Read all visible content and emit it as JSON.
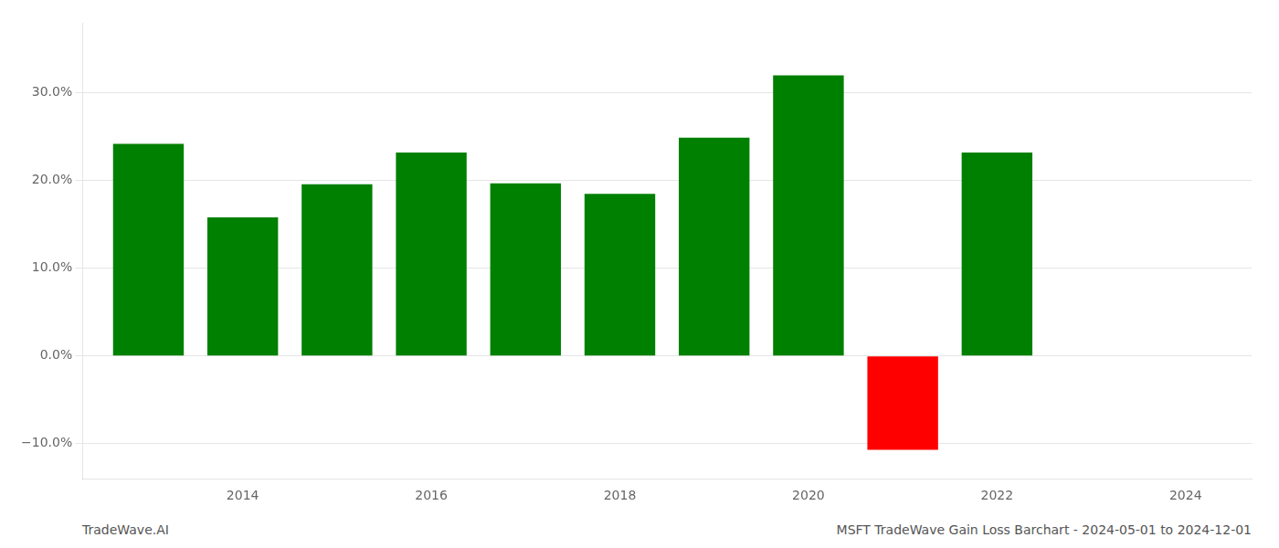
{
  "chart_data": {
    "type": "bar",
    "x": [
      2013,
      2014,
      2015,
      2016,
      2017,
      2018,
      2019,
      2020,
      2021,
      2022
    ],
    "values": [
      0.242,
      0.158,
      0.196,
      0.232,
      0.197,
      0.185,
      0.249,
      0.32,
      -0.107,
      0.232
    ],
    "colors": [
      "#008000",
      "#008000",
      "#008000",
      "#008000",
      "#008000",
      "#008000",
      "#008000",
      "#008000",
      "#ff0000",
      "#008000"
    ],
    "xlim": [
      2012.3,
      2024.7
    ],
    "xticks": [
      2014,
      2016,
      2018,
      2020,
      2022,
      2024
    ],
    "ylim": [
      -0.14,
      0.38
    ],
    "yticks": [
      {
        "value": -0.1,
        "label": "−10.0%"
      },
      {
        "value": 0.0,
        "label": "0.0%"
      },
      {
        "value": 0.1,
        "label": "10.0%"
      },
      {
        "value": 0.2,
        "label": "20.0%"
      },
      {
        "value": 0.3,
        "label": "30.0%"
      }
    ],
    "grid": "y",
    "annotations": [
      "TradeWave.AI",
      "MSFT TradeWave Gain Loss Barchart - 2024-05-01 to 2024-12-01"
    ]
  }
}
